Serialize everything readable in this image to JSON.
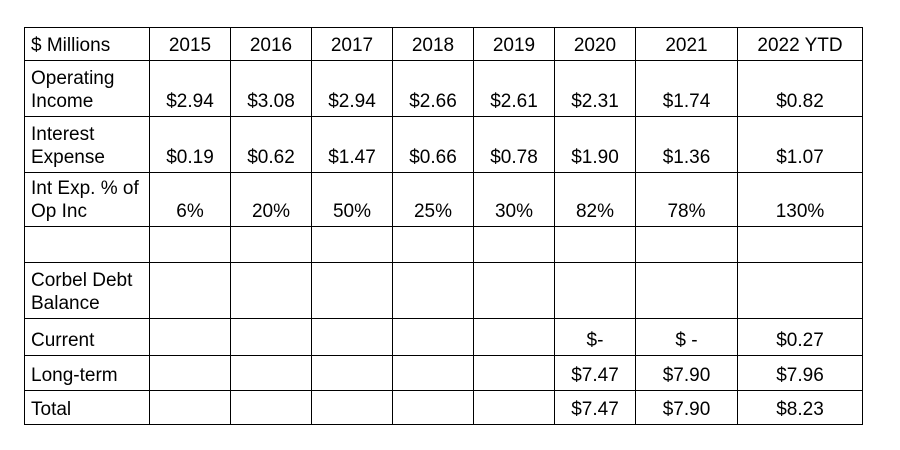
{
  "table": {
    "header": [
      "$ Millions",
      "2015",
      "2016",
      "2017",
      "2018",
      "2019",
      "2020",
      "2021",
      "2022 YTD"
    ],
    "rows": [
      {
        "label": "Operating Income",
        "values": [
          "$2.94",
          "$3.08",
          "$2.94",
          "$2.66",
          "$2.61",
          "$2.31",
          "$1.74",
          "$0.82"
        ]
      },
      {
        "label": "Interest Expense",
        "values": [
          "$0.19",
          "$0.62",
          "$1.47",
          "$0.66",
          "$0.78",
          "$1.90",
          "$1.36",
          "$1.07"
        ]
      },
      {
        "label": "Int Exp. % of Op Inc",
        "values": [
          "6%",
          "20%",
          "50%",
          "25%",
          "30%",
          "82%",
          "78%",
          "130%"
        ]
      },
      {
        "label": "",
        "values": [
          "",
          "",
          "",
          "",
          "",
          "",
          "",
          ""
        ]
      },
      {
        "label": "Corbel Debt Balance",
        "values": [
          "",
          "",
          "",
          "",
          "",
          "",
          "",
          ""
        ]
      },
      {
        "label": "Current",
        "values": [
          "",
          "",
          "",
          "",
          "",
          "$-",
          "$ -",
          "$0.27"
        ]
      },
      {
        "label": "Long-term",
        "values": [
          "",
          "",
          "",
          "",
          "",
          "$7.47",
          "$7.90",
          "$7.96"
        ]
      },
      {
        "label": "Total",
        "values": [
          "",
          "",
          "",
          "",
          "",
          "$7.47",
          "$7.90",
          "$8.23"
        ]
      }
    ]
  }
}
